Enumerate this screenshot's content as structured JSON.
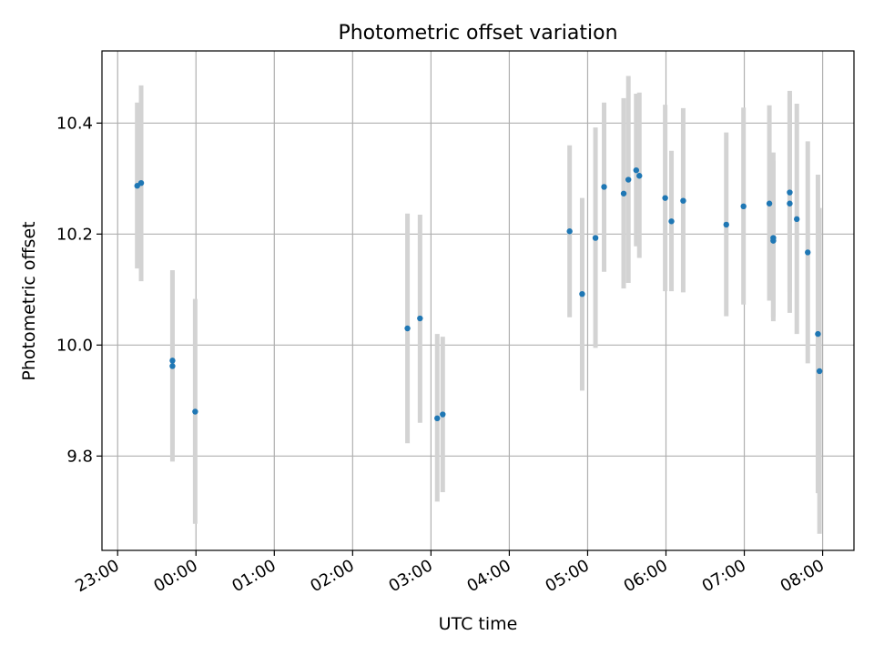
{
  "chart_data": {
    "type": "scatter",
    "title": "Photometric offset variation",
    "xlabel": "UTC time",
    "ylabel": "Photometric offset",
    "grid": true,
    "x_unit": "UTC time (hours)",
    "xlim": [
      -1.2,
      8.4
    ],
    "ylim": [
      9.63,
      10.53
    ],
    "x_ticks": [
      {
        "value": -1,
        "label": "23:00"
      },
      {
        "value": 0,
        "label": "00:00"
      },
      {
        "value": 1,
        "label": "01:00"
      },
      {
        "value": 2,
        "label": "02:00"
      },
      {
        "value": 3,
        "label": "03:00"
      },
      {
        "value": 4,
        "label": "04:00"
      },
      {
        "value": 5,
        "label": "05:00"
      },
      {
        "value": 6,
        "label": "06:00"
      },
      {
        "value": 7,
        "label": "07:00"
      },
      {
        "value": 8,
        "label": "08:00"
      }
    ],
    "y_ticks": [
      {
        "value": 9.8,
        "label": "9.8"
      },
      {
        "value": 10.0,
        "label": "10.0"
      },
      {
        "value": 10.2,
        "label": "10.2"
      },
      {
        "value": 10.4,
        "label": "10.4"
      }
    ],
    "colors": {
      "point": "#1f77b4",
      "errorbar": "#d3d3d3",
      "grid": "#b0b0b0"
    },
    "points": [
      {
        "x": -0.75,
        "y": 10.287,
        "lo": 10.138,
        "hi": 10.437
      },
      {
        "x": -0.7,
        "y": 10.292,
        "lo": 10.115,
        "hi": 10.468
      },
      {
        "x": -0.3,
        "y": 9.972,
        "lo": 9.812,
        "hi": 10.132
      },
      {
        "x": -0.3,
        "y": 9.962,
        "lo": 9.79,
        "hi": 10.135
      },
      {
        "x": -0.01,
        "y": 9.88,
        "lo": 9.678,
        "hi": 10.083
      },
      {
        "x": 2.7,
        "y": 10.03,
        "lo": 9.823,
        "hi": 10.237
      },
      {
        "x": 2.86,
        "y": 10.048,
        "lo": 9.86,
        "hi": 10.235
      },
      {
        "x": 3.08,
        "y": 9.868,
        "lo": 9.718,
        "hi": 10.02
      },
      {
        "x": 3.15,
        "y": 9.875,
        "lo": 9.735,
        "hi": 10.015
      },
      {
        "x": 4.77,
        "y": 10.205,
        "lo": 10.05,
        "hi": 10.36
      },
      {
        "x": 4.93,
        "y": 10.092,
        "lo": 9.918,
        "hi": 10.265
      },
      {
        "x": 5.1,
        "y": 10.193,
        "lo": 9.995,
        "hi": 10.392
      },
      {
        "x": 5.21,
        "y": 10.285,
        "lo": 10.132,
        "hi": 10.437
      },
      {
        "x": 5.46,
        "y": 10.273,
        "lo": 10.102,
        "hi": 10.445
      },
      {
        "x": 5.52,
        "y": 10.298,
        "lo": 10.112,
        "hi": 10.485
      },
      {
        "x": 5.62,
        "y": 10.315,
        "lo": 10.178,
        "hi": 10.453
      },
      {
        "x": 5.66,
        "y": 10.305,
        "lo": 10.157,
        "hi": 10.455
      },
      {
        "x": 5.99,
        "y": 10.265,
        "lo": 10.097,
        "hi": 10.433
      },
      {
        "x": 6.07,
        "y": 10.223,
        "lo": 10.097,
        "hi": 10.35
      },
      {
        "x": 6.22,
        "y": 10.26,
        "lo": 10.095,
        "hi": 10.427
      },
      {
        "x": 6.77,
        "y": 10.217,
        "lo": 10.052,
        "hi": 10.383
      },
      {
        "x": 6.99,
        "y": 10.25,
        "lo": 10.073,
        "hi": 10.428
      },
      {
        "x": 7.32,
        "y": 10.255,
        "lo": 10.08,
        "hi": 10.432
      },
      {
        "x": 7.37,
        "y": 10.193,
        "lo": 10.05,
        "hi": 10.347
      },
      {
        "x": 7.37,
        "y": 10.188,
        "lo": 10.043,
        "hi": 10.332
      },
      {
        "x": 7.58,
        "y": 10.275,
        "lo": 10.095,
        "hi": 10.458
      },
      {
        "x": 7.58,
        "y": 10.255,
        "lo": 10.058,
        "hi": 10.452
      },
      {
        "x": 7.67,
        "y": 10.227,
        "lo": 10.02,
        "hi": 10.435
      },
      {
        "x": 7.81,
        "y": 10.167,
        "lo": 9.967,
        "hi": 10.367
      },
      {
        "x": 7.94,
        "y": 10.02,
        "lo": 9.733,
        "hi": 10.307
      },
      {
        "x": 7.96,
        "y": 9.953,
        "lo": 9.66,
        "hi": 10.247
      }
    ]
  }
}
